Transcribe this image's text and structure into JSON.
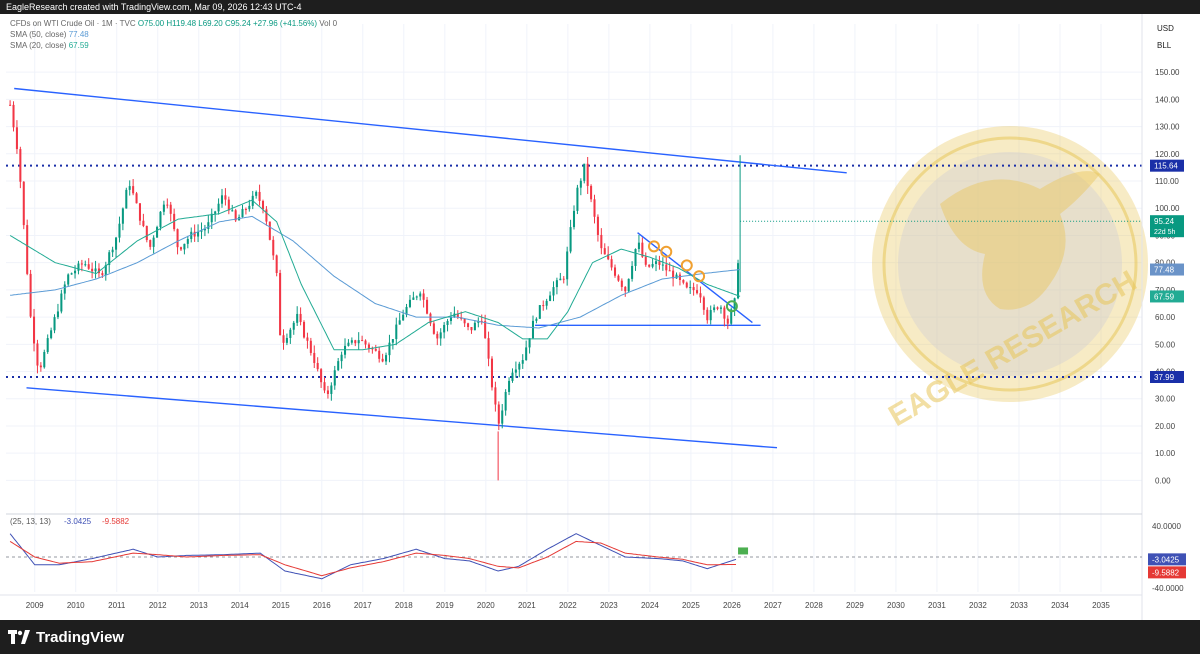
{
  "header": {
    "attribution": "EagleResearch created with TradingView.com, Mar 09, 2026 12:43 UTC-4"
  },
  "legend": {
    "symbol": "CFDs on WTI Crude Oil · 1M · TVC",
    "open": "O75.00",
    "high": "H119.48",
    "low": "L69.20",
    "close": "C95.24",
    "change": "+27.96 (+41.56%)",
    "vol": "Vol 0",
    "sma50_label": "SMA (50, close)",
    "sma50_value": "77.48",
    "sma20_label": "SMA (20, close)",
    "sma20_value": "67.59"
  },
  "currency": {
    "unit": "USD",
    "sub": "BLL"
  },
  "watermark": "EAGLE RESEARCH",
  "footer": {
    "brand": "TradingView"
  },
  "colors": {
    "up": "#089981",
    "down": "#f23645",
    "channel": "#2962ff",
    "sma50": "#5b9bd5",
    "sma20": "#22ab94",
    "orange": "#f0a030",
    "green": "#4caf50",
    "watermark": "#e8c65a"
  },
  "chart_data": {
    "type": "candlestick",
    "x_range": [
      2008.3,
      2036.0
    ],
    "y_range": [
      -5,
      153
    ],
    "y_ticks": [
      "150.00",
      "140.00",
      "130.00",
      "120.00",
      "110.00",
      "100.00",
      "90.00",
      "80.00",
      "70.00",
      "60.00",
      "50.00",
      "40.00",
      "30.00",
      "20.00",
      "10.00",
      "0.00"
    ],
    "y_tick_values": [
      150,
      140,
      130,
      120,
      110,
      100,
      90,
      80,
      70,
      60,
      50,
      40,
      30,
      20,
      10,
      0
    ],
    "x_ticks": [
      "2009",
      "2010",
      "2011",
      "2012",
      "2013",
      "2014",
      "2015",
      "2016",
      "2017",
      "2018",
      "2019",
      "2020",
      "2021",
      "2022",
      "2023",
      "2024",
      "2025",
      "2026",
      "2027",
      "2028",
      "2029",
      "2030",
      "2031",
      "2032",
      "2033",
      "2034",
      "2035"
    ],
    "x_tick_values": [
      2009,
      2010,
      2011,
      2012,
      2013,
      2014,
      2015,
      2016,
      2017,
      2018,
      2019,
      2020,
      2021,
      2022,
      2023,
      2024,
      2025,
      2026,
      2027,
      2028,
      2029,
      2030,
      2031,
      2032,
      2033,
      2034,
      2035
    ],
    "price_keypoints": [
      [
        2008.4,
        138
      ],
      [
        2008.6,
        120
      ],
      [
        2008.9,
        60
      ],
      [
        2009.1,
        40
      ],
      [
        2009.4,
        55
      ],
      [
        2009.8,
        75
      ],
      [
        2010.2,
        80
      ],
      [
        2010.6,
        75
      ],
      [
        2011.0,
        90
      ],
      [
        2011.3,
        110
      ],
      [
        2011.8,
        85
      ],
      [
        2012.2,
        105
      ],
      [
        2012.5,
        85
      ],
      [
        2012.8,
        90
      ],
      [
        2013.2,
        93
      ],
      [
        2013.6,
        105
      ],
      [
        2013.9,
        95
      ],
      [
        2014.4,
        105
      ],
      [
        2014.6,
        100
      ],
      [
        2014.9,
        75
      ],
      [
        2015.0,
        50
      ],
      [
        2015.4,
        60
      ],
      [
        2015.8,
        45
      ],
      [
        2016.1,
        30
      ],
      [
        2016.5,
        48
      ],
      [
        2016.9,
        52
      ],
      [
        2017.5,
        45
      ],
      [
        2018.0,
        62
      ],
      [
        2018.4,
        70
      ],
      [
        2018.8,
        52
      ],
      [
        2019.2,
        62
      ],
      [
        2019.6,
        55
      ],
      [
        2019.9,
        60
      ],
      [
        2020.3,
        20
      ],
      [
        2020.6,
        40
      ],
      [
        2020.9,
        45
      ],
      [
        2021.2,
        60
      ],
      [
        2021.6,
        70
      ],
      [
        2021.9,
        75
      ],
      [
        2022.2,
        105
      ],
      [
        2022.4,
        115
      ],
      [
        2022.8,
        85
      ],
      [
        2023.0,
        80
      ],
      [
        2023.4,
        70
      ],
      [
        2023.7,
        88
      ],
      [
        2023.9,
        78
      ],
      [
        2024.2,
        80
      ],
      [
        2024.6,
        75
      ],
      [
        2024.9,
        70
      ],
      [
        2025.2,
        70
      ],
      [
        2025.4,
        60
      ],
      [
        2025.7,
        65
      ],
      [
        2025.9,
        58
      ],
      [
        2026.1,
        67
      ],
      [
        2026.2,
        95.24
      ]
    ],
    "series": [
      {
        "name": "SMA (50, close)",
        "last": 77.48,
        "keypoints": [
          [
            2008.4,
            68
          ],
          [
            2009.5,
            70
          ],
          [
            2010.5,
            74
          ],
          [
            2011.5,
            80
          ],
          [
            2012.5,
            88
          ],
          [
            2013.5,
            95
          ],
          [
            2014.3,
            97
          ],
          [
            2015.3,
            88
          ],
          [
            2016.3,
            75
          ],
          [
            2017.3,
            65
          ],
          [
            2018.3,
            60
          ],
          [
            2019.3,
            60
          ],
          [
            2020.3,
            57
          ],
          [
            2021.3,
            56
          ],
          [
            2022.3,
            60
          ],
          [
            2023.3,
            68
          ],
          [
            2024.3,
            74
          ],
          [
            2025.3,
            76
          ],
          [
            2026.2,
            77.48
          ]
        ]
      },
      {
        "name": "SMA (20, close)",
        "last": 67.59,
        "keypoints": [
          [
            2008.4,
            90
          ],
          [
            2009.5,
            80
          ],
          [
            2010.5,
            76
          ],
          [
            2011.5,
            88
          ],
          [
            2012.5,
            96
          ],
          [
            2013.5,
            98
          ],
          [
            2014.3,
            103
          ],
          [
            2014.9,
            95
          ],
          [
            2015.5,
            72
          ],
          [
            2016.3,
            48
          ],
          [
            2017.0,
            48
          ],
          [
            2017.8,
            50
          ],
          [
            2018.6,
            58
          ],
          [
            2019.5,
            62
          ],
          [
            2020.3,
            58
          ],
          [
            2020.9,
            52
          ],
          [
            2021.5,
            52
          ],
          [
            2022.0,
            62
          ],
          [
            2022.6,
            80
          ],
          [
            2023.3,
            85
          ],
          [
            2024.0,
            82
          ],
          [
            2024.7,
            78
          ],
          [
            2025.4,
            72
          ],
          [
            2026.2,
            67.59
          ]
        ]
      }
    ],
    "levels": [
      {
        "price": 115.64,
        "label": "115.64"
      },
      {
        "price": 37.99,
        "label": "37.99"
      }
    ],
    "axis_badges": [
      {
        "price": 95.24,
        "label": "95.24",
        "sub": "22d 5h"
      },
      {
        "price": 77.48,
        "label": "77.48"
      },
      {
        "price": 67.59,
        "label": "67.59"
      }
    ],
    "trendlines": [
      {
        "from": [
          2008.5,
          144
        ],
        "to": [
          2028.8,
          113
        ]
      },
      {
        "from": [
          2008.8,
          34
        ],
        "to": [
          2027.1,
          12
        ]
      },
      {
        "from": [
          2021.2,
          57
        ],
        "to": [
          2026.7,
          57
        ]
      },
      {
        "from": [
          2023.7,
          91
        ],
        "to": [
          2026.5,
          58
        ]
      }
    ],
    "orange_circles": [
      [
        2024.1,
        86
      ],
      [
        2024.4,
        84
      ],
      [
        2024.9,
        79
      ],
      [
        2025.2,
        75
      ]
    ],
    "green_circle": [
      2026.0,
      64
    ],
    "oscillator": {
      "label": "(25, 13, 13)",
      "value1": "-3.0425",
      "value2": "-9.5882",
      "y_ticks": [
        "40.0000",
        "-40.0000"
      ],
      "y_tick_values": [
        40,
        -40
      ],
      "y_range": [
        -45,
        45
      ],
      "series": [
        {
          "name": "tsi",
          "color": "#3f51b5",
          "keypoints": [
            [
              2008.4,
              30
            ],
            [
              2009.0,
              -10
            ],
            [
              2009.6,
              -10
            ],
            [
              2010.4,
              -2
            ],
            [
              2011.4,
              10
            ],
            [
              2012.0,
              0
            ],
            [
              2012.7,
              2
            ],
            [
              2013.6,
              3
            ],
            [
              2014.5,
              5
            ],
            [
              2015.1,
              -18
            ],
            [
              2016.0,
              -28
            ],
            [
              2016.7,
              -10
            ],
            [
              2017.5,
              -2
            ],
            [
              2018.3,
              10
            ],
            [
              2019.0,
              -2
            ],
            [
              2019.6,
              -5
            ],
            [
              2020.3,
              -18
            ],
            [
              2020.8,
              -12
            ],
            [
              2021.5,
              10
            ],
            [
              2022.2,
              30
            ],
            [
              2022.8,
              15
            ],
            [
              2023.4,
              0
            ],
            [
              2024.2,
              -2
            ],
            [
              2024.8,
              -5
            ],
            [
              2025.4,
              -15
            ],
            [
              2026.1,
              -3.0425
            ]
          ]
        },
        {
          "name": "signal",
          "color": "#e53935",
          "keypoints": [
            [
              2008.4,
              20
            ],
            [
              2009.0,
              0
            ],
            [
              2009.6,
              -8
            ],
            [
              2010.4,
              -6
            ],
            [
              2011.4,
              5
            ],
            [
              2012.0,
              3
            ],
            [
              2012.7,
              0
            ],
            [
              2013.6,
              2
            ],
            [
              2014.5,
              3
            ],
            [
              2015.1,
              -10
            ],
            [
              2016.0,
              -24
            ],
            [
              2016.7,
              -14
            ],
            [
              2017.5,
              -6
            ],
            [
              2018.3,
              5
            ],
            [
              2019.0,
              2
            ],
            [
              2019.6,
              -2
            ],
            [
              2020.3,
              -12
            ],
            [
              2020.8,
              -14
            ],
            [
              2021.5,
              0
            ],
            [
              2022.2,
              20
            ],
            [
              2022.8,
              18
            ],
            [
              2023.4,
              5
            ],
            [
              2024.2,
              0
            ],
            [
              2024.8,
              -3
            ],
            [
              2025.4,
              -10
            ],
            [
              2026.1,
              -9.5882
            ]
          ]
        }
      ]
    }
  }
}
